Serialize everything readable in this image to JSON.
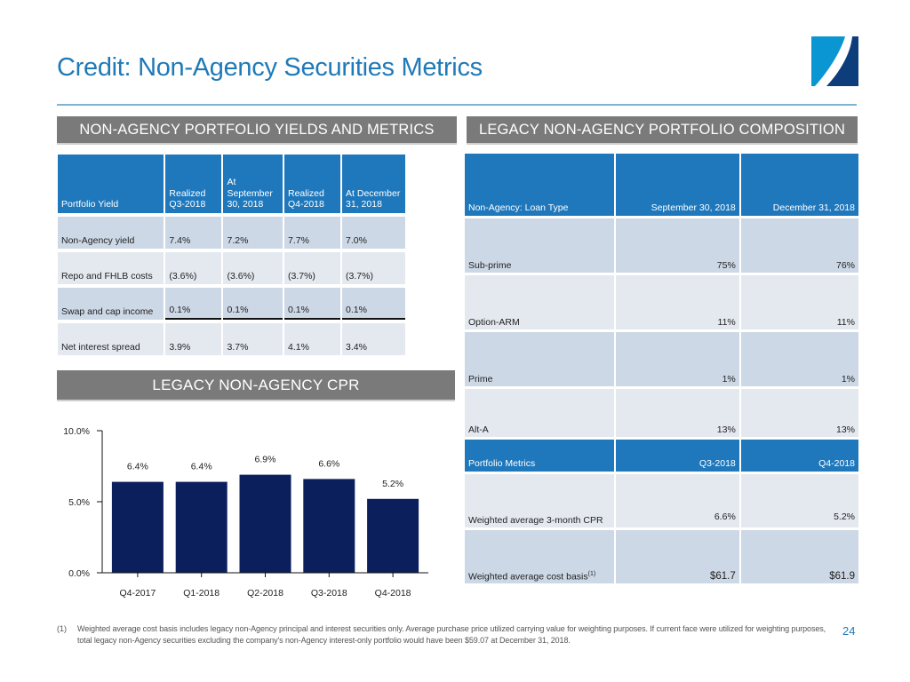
{
  "title": "Credit: Non-Agency Securities Metrics",
  "logo": {
    "name": "company-logo",
    "colors": {
      "light": "#0a95d3",
      "dark": "#0d3d7a"
    }
  },
  "sections": {
    "yields_header": "NON-AGENCY PORTFOLIO YIELDS AND METRICS",
    "composition_header": "LEGACY NON-AGENCY PORTFOLIO COMPOSITION",
    "cpr_header": "LEGACY NON-AGENCY CPR"
  },
  "yields_table": {
    "headers": [
      "Portfolio Yield",
      "Realized Q3-2018",
      "At September 30, 2018",
      "Realized Q4-2018",
      "At December 31, 2018"
    ],
    "header_lines": [
      [
        "Portfolio Yield"
      ],
      [
        "Realized",
        "Q3-2018"
      ],
      [
        "At",
        "September",
        "30, 2018"
      ],
      [
        "Realized",
        "Q4-2018"
      ],
      [
        "At December",
        "31, 2018"
      ]
    ],
    "rows": [
      {
        "label": "Non-Agency yield",
        "values": [
          "7.4%",
          "7.2%",
          "7.7%",
          "7.0%"
        ]
      },
      {
        "label": "Repo and FHLB costs",
        "values": [
          "(3.6%)",
          "(3.6%)",
          "(3.7%)",
          "(3.7%)"
        ]
      },
      {
        "label": "Swap and cap income",
        "values": [
          "0.1%",
          "0.1%",
          "0.1%",
          "0.1%"
        ]
      },
      {
        "label": "Net interest spread",
        "values": [
          "3.9%",
          "3.7%",
          "4.1%",
          "3.4%"
        ]
      }
    ]
  },
  "composition_table": {
    "headers": [
      "Non-Agency: Loan Type",
      "September 30, 2018",
      "December 31, 2018"
    ],
    "rows": [
      {
        "label": "Sub-prime",
        "values": [
          "75%",
          "76%"
        ]
      },
      {
        "label": "Option-ARM",
        "values": [
          "11%",
          "11%"
        ]
      },
      {
        "label": "Prime",
        "values": [
          "1%",
          "1%"
        ]
      },
      {
        "label": "Alt-A",
        "values": [
          "13%",
          "13%"
        ]
      }
    ],
    "metrics_headers": [
      "Portfolio Metrics",
      "Q3-2018",
      "Q4-2018"
    ],
    "metrics_rows": [
      {
        "label": "Weighted average 3-month CPR",
        "values": [
          "6.6%",
          "5.2%"
        ]
      },
      {
        "label": "Weighted average cost basis",
        "footnote_ref": "(1)",
        "values": [
          "$61.7",
          "$61.9"
        ]
      }
    ]
  },
  "chart_data": {
    "type": "bar",
    "title": "LEGACY NON-AGENCY CPR",
    "categories": [
      "Q4-2017",
      "Q1-2018",
      "Q2-2018",
      "Q3-2018",
      "Q4-2018"
    ],
    "values": [
      6.4,
      6.4,
      6.9,
      6.6,
      5.2
    ],
    "value_labels": [
      "6.4%",
      "6.4%",
      "6.9%",
      "6.6%",
      "5.2%"
    ],
    "xlabel": "",
    "ylabel": "",
    "ylim": [
      0,
      10
    ],
    "yticks": [
      0,
      5,
      10
    ],
    "ytick_labels": [
      "0.0%",
      "5.0%",
      "10.0%"
    ],
    "bar_color": "#0b1f5c",
    "grid": false,
    "legend": "none"
  },
  "footnote": {
    "marker": "(1)",
    "text": "Weighted average cost basis includes legacy non-Agency principal and interest securities only.  Average purchase price utilized carrying value for weighting purposes.  If current face were utilized for weighting purposes, total legacy non-Agency securities excluding the company's non-Agency interest-only portfolio would have been $59.07 at December 31, 2018."
  },
  "page_number": "24"
}
